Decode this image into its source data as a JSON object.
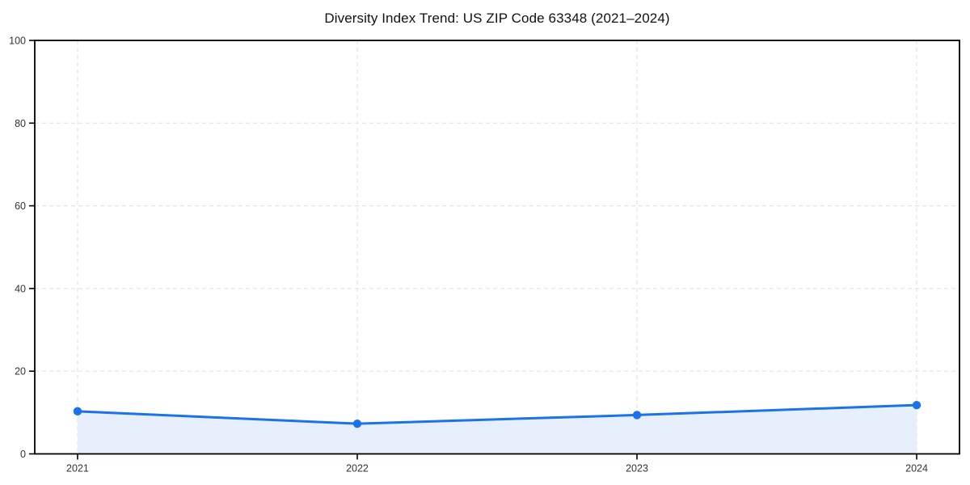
{
  "chart_data": {
    "type": "area",
    "subtype": "line-with-markers-and-fill",
    "title": "Diversity Index Trend: US ZIP Code 63348 (2021–2024)",
    "x": [
      2021,
      2022,
      2023,
      2024
    ],
    "categories": [
      "2021",
      "2022",
      "2023",
      "2024"
    ],
    "series": [
      {
        "name": "Diversity Index",
        "values": [
          10.3,
          7.3,
          9.4,
          11.8
        ]
      }
    ],
    "xlabel": "",
    "ylabel": "",
    "ylim": [
      0,
      100
    ],
    "yticks": [
      0,
      20,
      40,
      60,
      80,
      100
    ],
    "xtick_labels": [
      "2021",
      "2022",
      "2023",
      "2024"
    ],
    "grid": "on",
    "grid_style": "dashed",
    "legend": "none",
    "fill_between_first_and_last_point_only": true,
    "colors": {
      "line": "#1a73e8",
      "marker": "#1a73e8",
      "fill": "#e8effc",
      "grid": "#e3e3e3",
      "spine": "#000000",
      "tick_label": "#333333",
      "title": "#111111",
      "background": "#ffffff"
    }
  }
}
